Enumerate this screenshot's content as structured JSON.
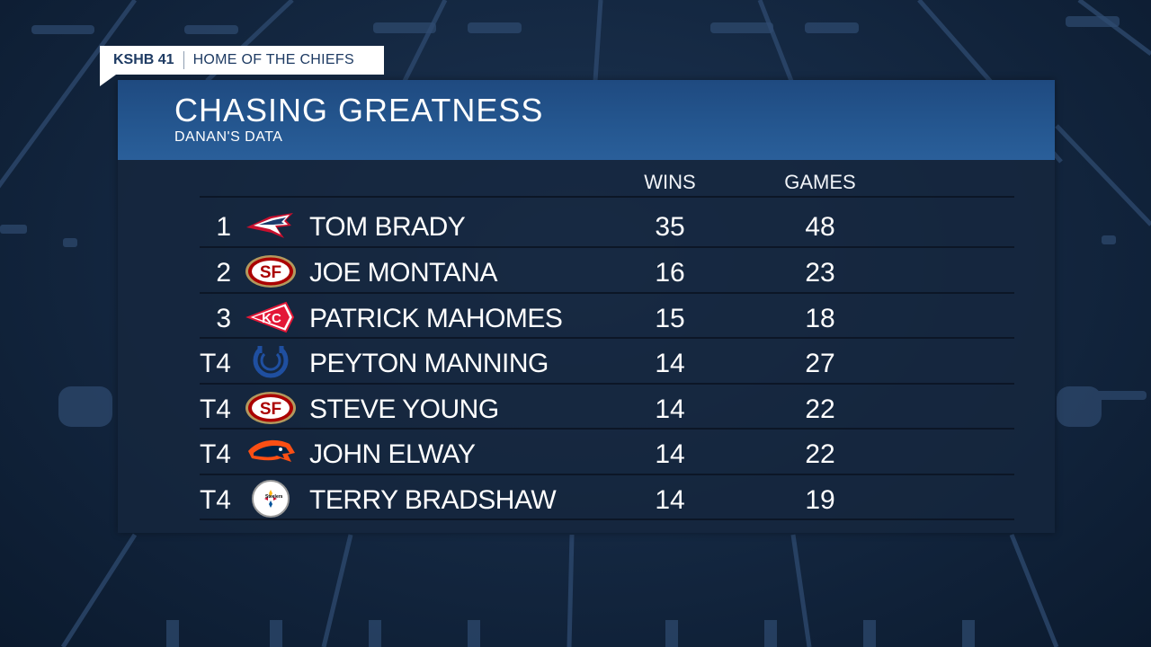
{
  "colors": {
    "header_blue": "#2a5f9a",
    "panel_navy": "#16263e",
    "tag_text": "#1e3b63"
  },
  "tag": {
    "station": "KSHB 41",
    "slogan": "HOME OF THE CHIEFS"
  },
  "graphic": {
    "title": "CHASING GREATNESS",
    "subtitle": "DANAN'S DATA"
  },
  "table": {
    "columns": [
      "WINS",
      "GAMES"
    ],
    "rows": [
      {
        "rank": "1",
        "logo": "patriots-logo-icon",
        "name": "TOM BRADY",
        "wins": "35",
        "games": "48"
      },
      {
        "rank": "2",
        "logo": "49ers-logo-icon",
        "name": "JOE MONTANA",
        "wins": "16",
        "games": "23"
      },
      {
        "rank": "3",
        "logo": "chiefs-logo-icon",
        "name": "PATRICK MAHOMES",
        "wins": "15",
        "games": "18"
      },
      {
        "rank": "T4",
        "logo": "colts-logo-icon",
        "name": "PEYTON MANNING",
        "wins": "14",
        "games": "27"
      },
      {
        "rank": "T4",
        "logo": "49ers-logo-icon",
        "name": "STEVE YOUNG",
        "wins": "14",
        "games": "22"
      },
      {
        "rank": "T4",
        "logo": "broncos-logo-icon",
        "name": "JOHN ELWAY",
        "wins": "14",
        "games": "22"
      },
      {
        "rank": "T4",
        "logo": "steelers-logo-icon",
        "name": "TERRY BRADSHAW",
        "wins": "14",
        "games": "19"
      }
    ]
  }
}
